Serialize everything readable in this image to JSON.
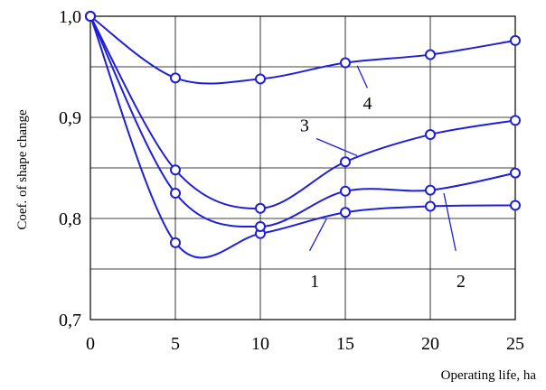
{
  "chart_data": {
    "type": "line",
    "xlabel": "Operating life, ha",
    "ylabel": "Coef. of shape change",
    "xlim": [
      0,
      25
    ],
    "ylim": [
      0.7,
      1.0
    ],
    "x_ticks": [
      "0",
      "5",
      "10",
      "15",
      "20",
      "25"
    ],
    "y_ticks": [
      "0,7",
      "0,8",
      "0,9",
      "1,0"
    ],
    "grid": true,
    "line_color": "#1f1fd6",
    "series": [
      {
        "name": "1",
        "x": [
          0,
          5,
          10,
          15,
          20,
          25
        ],
        "values": [
          1.0,
          0.776,
          0.785,
          0.806,
          0.812,
          0.813
        ]
      },
      {
        "name": "2",
        "x": [
          0,
          5,
          10,
          15,
          20,
          25
        ],
        "values": [
          1.0,
          0.825,
          0.792,
          0.827,
          0.828,
          0.845
        ]
      },
      {
        "name": "3",
        "x": [
          0,
          5,
          10,
          15,
          20,
          25
        ],
        "values": [
          1.0,
          0.848,
          0.81,
          0.856,
          0.883,
          0.897
        ]
      },
      {
        "name": "4",
        "x": [
          0,
          5,
          10,
          15,
          20,
          25
        ],
        "values": [
          1.0,
          0.939,
          0.938,
          0.954,
          0.962,
          0.976
        ]
      }
    ]
  }
}
